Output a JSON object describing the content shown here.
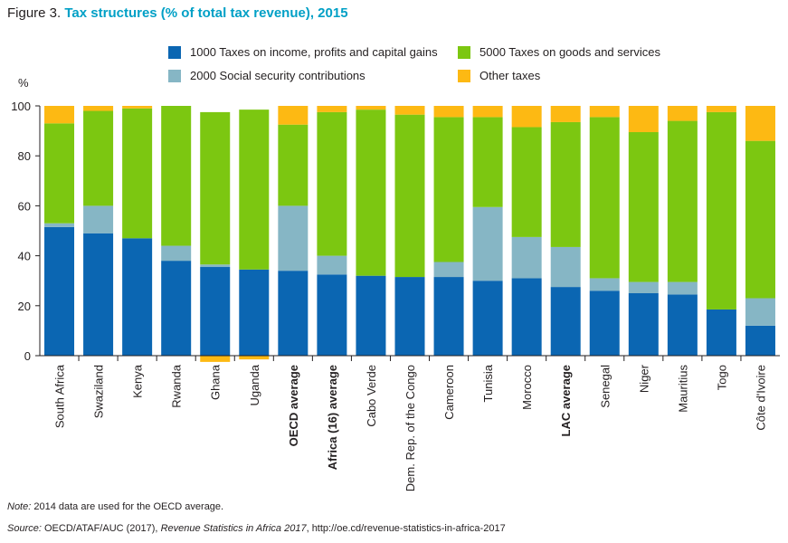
{
  "figure": {
    "label": "Figure 3.",
    "title": "Tax structures (% of total tax revenue), 2015"
  },
  "colors": {
    "income": "#0b66b2",
    "social": "#86b6c5",
    "goods": "#7cc711",
    "other": "#fdb913",
    "title": "#00a0c6"
  },
  "legend": {
    "income": "1000 Taxes on income, profits and capital gains",
    "goods": "5000 Taxes on goods and services",
    "social": "2000 Social security contributions",
    "other": "Other taxes"
  },
  "chart_data": {
    "type": "bar",
    "stacked": true,
    "title": "Tax structures (% of total tax revenue), 2015",
    "ylabel": "%",
    "ylim": [
      0,
      100
    ],
    "yticks": [
      0,
      20,
      40,
      60,
      80,
      100
    ],
    "grid": false,
    "legend_position": "top",
    "categories": [
      "South Africa",
      "Swaziland",
      "Kenya",
      "Rwanda",
      "Ghana",
      "Uganda",
      "OECD average",
      "Africa (16) average",
      "Cabo Verde",
      "Dem. Rep. of the Congo",
      "Cameroon",
      "Tunisia",
      "Morocco",
      "LAC average",
      "Senegal",
      "Niger",
      "Mauritius",
      "Togo",
      "Côte d'Ivoire"
    ],
    "bold_categories": [
      "OECD average",
      "Africa (16) average",
      "LAC average"
    ],
    "series": [
      {
        "key": "income",
        "name": "1000 Taxes on income, profits and capital gains",
        "values": [
          51.5,
          49,
          47,
          38,
          35.5,
          34.5,
          34,
          32.5,
          32,
          31.5,
          31.5,
          30,
          31,
          27.5,
          26,
          25,
          24.5,
          18.5,
          12
        ]
      },
      {
        "key": "social",
        "name": "2000 Social security contributions",
        "values": [
          1.5,
          11,
          0,
          6,
          1,
          0,
          26,
          7.5,
          0,
          0,
          6,
          29.5,
          16.5,
          16,
          5,
          4.5,
          5,
          0,
          11
        ]
      },
      {
        "key": "goods",
        "name": "5000 Taxes on goods and services",
        "values": [
          40,
          38,
          52,
          56,
          61,
          64,
          32.5,
          57.5,
          66.5,
          65,
          58,
          36,
          44,
          50,
          64.5,
          60,
          64.5,
          79,
          63
        ]
      },
      {
        "key": "other",
        "name": "Other taxes",
        "values": [
          7,
          2,
          1,
          0,
          -2.5,
          -1.5,
          7.5,
          2.5,
          1.5,
          3.5,
          4.5,
          4.5,
          8.5,
          6.5,
          4.5,
          10.5,
          6,
          2.5,
          14
        ]
      }
    ]
  },
  "footer": {
    "note_label": "Note:",
    "note_text": "2014 data are used for the OECD average.",
    "source_label": "Source:",
    "source_text": "OECD/ATAF/AUC (2017),",
    "source_pub": "Revenue Statistics in Africa 2017",
    "source_url": ", http://oe.cd/revenue-statistics-in-africa-2017"
  }
}
